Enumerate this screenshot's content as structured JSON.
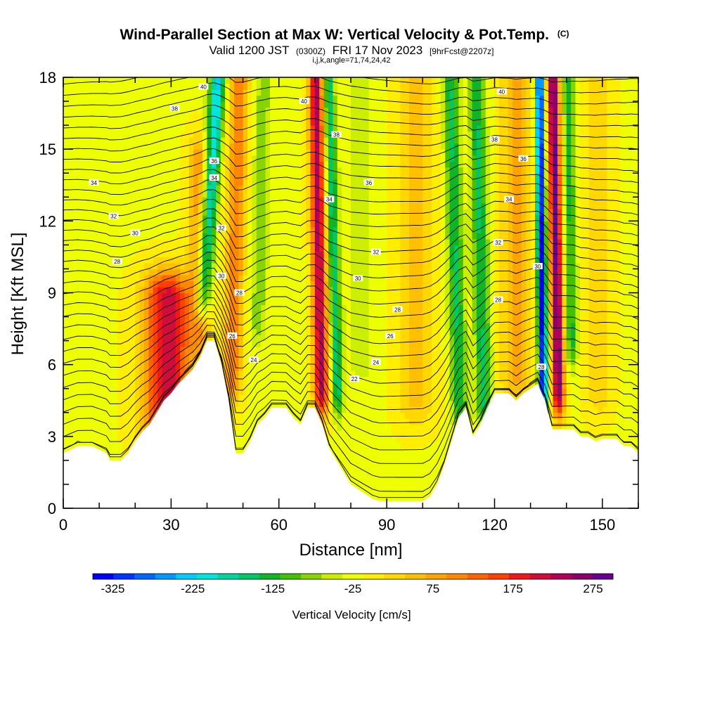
{
  "chart_data": {
    "type": "heatmap",
    "title": "Wind-Parallel Section at Max W: Vertical Velocity & Pot.Temp.",
    "title_mark": "(C)",
    "subtitle_parts": [
      "Valid 1200 JST",
      "(0300Z)",
      "FRI 17 Nov 2023",
      "[9hrFcst@2207z]"
    ],
    "subtitle2": "i,j,k,angle=71,74,24,42",
    "xlabel": "Distance [nm]",
    "ylabel": "Height [Kft MSL]",
    "xlim": [
      0,
      160
    ],
    "ylim": [
      0,
      18
    ],
    "x_ticks": [
      "0",
      "30",
      "60",
      "90",
      "120",
      "150"
    ],
    "x_tick_values": [
      0,
      30,
      60,
      90,
      120,
      150
    ],
    "y_ticks": [
      "0",
      "3",
      "6",
      "9",
      "12",
      "15",
      "18"
    ],
    "y_tick_values": [
      0,
      3,
      6,
      9,
      12,
      15,
      18
    ],
    "colorbar": {
      "label": "Vertical Velocity [cm/s]",
      "min": -350,
      "max": 300,
      "tick_labels": [
        "-325",
        "-225",
        "-125",
        "-25",
        "75",
        "175",
        "275"
      ],
      "tick_values": [
        -325,
        -225,
        -125,
        -25,
        75,
        175,
        275
      ],
      "colors": [
        "#0000ff",
        "#0033ff",
        "#0066ff",
        "#0099ff",
        "#00ccff",
        "#00e5dd",
        "#00d4a0",
        "#00c864",
        "#10b428",
        "#44c000",
        "#88d400",
        "#ccee00",
        "#eeff00",
        "#ffee00",
        "#ffd800",
        "#ffc000",
        "#ffa400",
        "#ff8800",
        "#ff6400",
        "#ff4000",
        "#ee1a1a",
        "#d00c3a",
        "#b0005a",
        "#8c006e",
        "#6a0090"
      ]
    },
    "terrain_profile": {
      "x": [
        0,
        4,
        8,
        12,
        13,
        16,
        18,
        20,
        22,
        24,
        26,
        28,
        30,
        32,
        34,
        36,
        38,
        40,
        42,
        44,
        46,
        48,
        50,
        52,
        54,
        56,
        58,
        60,
        62,
        64,
        66,
        68,
        70,
        72,
        74,
        76,
        78,
        80,
        82,
        84,
        86,
        88,
        90,
        92,
        94,
        96,
        98,
        100,
        102,
        104,
        106,
        108,
        110,
        112,
        114,
        116,
        118,
        120,
        122,
        124,
        126,
        128,
        130,
        132,
        134,
        136,
        138,
        140,
        142,
        144,
        146,
        148,
        150,
        152,
        154,
        156,
        158,
        160
      ],
      "y": [
        2.3,
        2.6,
        2.6,
        2.3,
        2.0,
        2.0,
        2.3,
        2.8,
        3.2,
        3.5,
        4.0,
        4.5,
        4.8,
        5.2,
        5.5,
        5.8,
        6.3,
        7.0,
        7.0,
        6.0,
        4.5,
        2.3,
        2.3,
        2.8,
        3.5,
        3.8,
        4.2,
        4.2,
        4.2,
        3.8,
        3.5,
        4.2,
        4.2,
        3.5,
        2.5,
        2.0,
        1.5,
        1.0,
        0.8,
        0.6,
        0.4,
        0.3,
        0.3,
        0.3,
        0.3,
        0.3,
        0.3,
        0.3,
        0.5,
        1.0,
        1.8,
        2.8,
        3.8,
        4.2,
        3.0,
        3.5,
        4.2,
        4.8,
        4.8,
        4.8,
        4.5,
        4.8,
        5.0,
        5.2,
        4.5,
        3.3,
        3.3,
        3.3,
        3.3,
        3.0,
        3.0,
        2.8,
        2.9,
        2.9,
        2.9,
        2.6,
        2.6,
        2.3
      ]
    },
    "vertical_velocity_cells": [
      {
        "center_x": 29,
        "center_top_y": 3.2,
        "center_bottom_y": 8.8,
        "half_width": 6.5,
        "max": 230
      },
      {
        "center_x": 38,
        "center_top_y": 7.5,
        "center_bottom_y": 14.5,
        "half_width": 3.0,
        "max": 110
      },
      {
        "center_x": 41,
        "center_top_y": 18.0,
        "center_bottom_y": 9.0,
        "half_width": 2.2,
        "max": -210,
        "tilt": 4.0
      },
      {
        "center_x": 48,
        "center_top_y": 18.0,
        "center_bottom_y": 5.5,
        "half_width": 2.5,
        "max": 130,
        "tilt": 2.0
      },
      {
        "center_x": 55,
        "center_top_y": 18.0,
        "center_bottom_y": 8.0,
        "half_width": 2.2,
        "max": -70,
        "tilt": 1.5
      },
      {
        "center_x": 71,
        "center_top_y": 18.0,
        "center_bottom_y": 5.0,
        "half_width": 2.0,
        "max": 250,
        "tilt": -1.5
      },
      {
        "center_x": 75,
        "center_top_y": 18.0,
        "center_bottom_y": 5.0,
        "half_width": 1.6,
        "max": -150,
        "tilt": -2.5
      },
      {
        "center_x": 83,
        "center_top_y": 18.0,
        "center_bottom_y": 6.0,
        "half_width": 5.0,
        "max": -30
      },
      {
        "center_x": 98,
        "center_top_y": 18.0,
        "center_bottom_y": 4.5,
        "half_width": 5.0,
        "max": 60
      },
      {
        "center_x": 109,
        "center_top_y": 18.0,
        "center_bottom_y": 4.5,
        "half_width": 2.2,
        "max": -130,
        "tilt": -2.5
      },
      {
        "center_x": 116,
        "center_top_y": 18.0,
        "center_bottom_y": 4.5,
        "half_width": 2.2,
        "max": -130,
        "tilt": -2.0
      },
      {
        "center_x": 126,
        "center_top_y": 18.0,
        "center_bottom_y": 5.5,
        "half_width": 4.0,
        "max": 90
      },
      {
        "center_x": 133,
        "center_top_y": 18.0,
        "center_bottom_y": 5.0,
        "half_width": 1.3,
        "max": -320,
        "tilt": -1.0
      },
      {
        "center_x": 137,
        "center_top_y": 18.0,
        "center_bottom_y": 5.0,
        "half_width": 1.6,
        "max": 300,
        "tilt": -1.5
      },
      {
        "center_x": 141,
        "center_top_y": 18.0,
        "center_bottom_y": 7.0,
        "half_width": 1.6,
        "max": -110,
        "tilt": -1.0
      },
      {
        "center_x": 149,
        "center_top_y": 18.0,
        "center_bottom_y": 5.0,
        "half_width": 3.5,
        "max": 50
      }
    ],
    "theta_contour_labels": [
      {
        "text": "40",
        "x": 39,
        "y": 17.6
      },
      {
        "text": "38",
        "x": 31,
        "y": 16.7
      },
      {
        "text": "36",
        "x": 42,
        "y": 14.5
      },
      {
        "text": "34",
        "x": 42,
        "y": 13.8
      },
      {
        "text": "34",
        "x": 8.5,
        "y": 13.6
      },
      {
        "text": "32",
        "x": 44,
        "y": 11.7
      },
      {
        "text": "32",
        "x": 14,
        "y": 12.2
      },
      {
        "text": "30",
        "x": 20,
        "y": 11.5
      },
      {
        "text": "28",
        "x": 15,
        "y": 10.3
      },
      {
        "text": "30",
        "x": 44,
        "y": 9.7
      },
      {
        "text": "28",
        "x": 49,
        "y": 9.0
      },
      {
        "text": "26",
        "x": 47,
        "y": 7.2
      },
      {
        "text": "24",
        "x": 53,
        "y": 6.2
      },
      {
        "text": "40",
        "x": 67,
        "y": 17.0
      },
      {
        "text": "38",
        "x": 76,
        "y": 15.6
      },
      {
        "text": "34",
        "x": 74,
        "y": 12.9
      },
      {
        "text": "36",
        "x": 85,
        "y": 13.6
      },
      {
        "text": "32",
        "x": 87,
        "y": 10.7
      },
      {
        "text": "30",
        "x": 82,
        "y": 9.6
      },
      {
        "text": "28",
        "x": 93,
        "y": 8.3
      },
      {
        "text": "26",
        "x": 91,
        "y": 7.2
      },
      {
        "text": "24",
        "x": 87,
        "y": 6.1
      },
      {
        "text": "22",
        "x": 81,
        "y": 5.4
      },
      {
        "text": "40",
        "x": 122,
        "y": 17.4
      },
      {
        "text": "38",
        "x": 120,
        "y": 15.4
      },
      {
        "text": "36",
        "x": 128,
        "y": 14.6
      },
      {
        "text": "34",
        "x": 124,
        "y": 12.9
      },
      {
        "text": "32",
        "x": 121,
        "y": 11.1
      },
      {
        "text": "30",
        "x": 132,
        "y": 10.1
      },
      {
        "text": "28",
        "x": 121,
        "y": 8.7
      },
      {
        "text": "28",
        "x": 133,
        "y": 5.9
      }
    ]
  }
}
